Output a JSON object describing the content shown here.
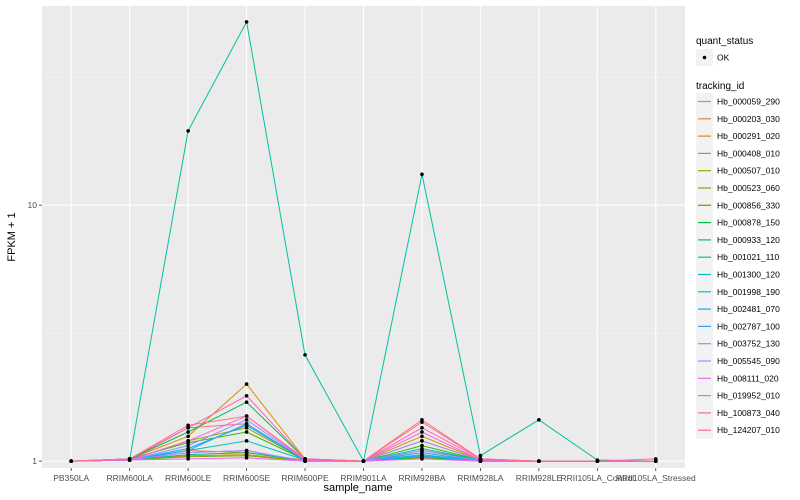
{
  "chart_data": {
    "type": "line",
    "title": "",
    "xlabel": "sample_name",
    "ylabel": "FPKM + 1",
    "y_scale": "log10",
    "ylim": [
      0.94,
      60
    ],
    "y_ticks": [
      {
        "value": 1,
        "label": "1"
      },
      {
        "value": 10,
        "label": "10"
      }
    ],
    "grid": true,
    "categories": [
      "PB350LA",
      "RRIM600LA",
      "RRIM600LE",
      "RRIM600SE",
      "RRIM600PE",
      "RRIM901LA",
      "RRIM928BA",
      "RRIM928LA",
      "RRIM928LE",
      "RRII105LA_Control",
      "RRII105LA_Stressed"
    ],
    "legend_position": "right",
    "point_legend": {
      "title": "quant_status",
      "entries": [
        "OK"
      ]
    },
    "legend_title": "tracking_id",
    "series": [
      {
        "name": "Hb_000059_290",
        "color": "#F8766D",
        "values": [
          1,
          1.01,
          1.35,
          1.4,
          1.01,
          1,
          1.42,
          1.02,
          1,
          1,
          1
        ]
      },
      {
        "name": "Hb_000203_030",
        "color": "#EA8331",
        "values": [
          1,
          1.01,
          1.1,
          1.08,
          1.01,
          1,
          1.2,
          1.01,
          1,
          1,
          1
        ]
      },
      {
        "name": "Hb_000291_020",
        "color": "#D89000",
        "values": [
          1,
          1.02,
          1.25,
          2.0,
          1.02,
          1,
          1.25,
          1.01,
          1,
          1,
          1
        ]
      },
      {
        "name": "Hb_000408_010",
        "color": "#C09B00",
        "values": [
          1,
          1.01,
          1.05,
          1.06,
          1.0,
          1,
          1.05,
          1.0,
          1,
          1,
          1
        ]
      },
      {
        "name": "Hb_000507_010",
        "color": "#A3A500",
        "values": [
          1,
          1.01,
          1.2,
          1.35,
          1.01,
          1,
          1.1,
          1.01,
          1,
          1,
          1
        ]
      },
      {
        "name": "Hb_000523_060",
        "color": "#7CAE00",
        "values": [
          1,
          1.01,
          1.04,
          1.05,
          1.0,
          1,
          1.03,
          1.0,
          1,
          1,
          1
        ]
      },
      {
        "name": "Hb_000856_330",
        "color": "#39B600",
        "values": [
          1,
          1.02,
          1.18,
          1.3,
          1.01,
          1,
          1.15,
          1.01,
          1,
          1,
          1
        ]
      },
      {
        "name": "Hb_000878_150",
        "color": "#00BB4E",
        "values": [
          1,
          1.02,
          1.3,
          1.7,
          1.02,
          1,
          1.1,
          1.01,
          1,
          1,
          1
        ]
      },
      {
        "name": "Hb_000933_120",
        "color": "#00BF7D",
        "values": [
          1,
          1.01,
          1.06,
          1.08,
          1.0,
          1,
          1.04,
          1.0,
          1,
          1,
          1
        ]
      },
      {
        "name": "Hb_001021_110",
        "color": "#00C1A3",
        "values": [
          1,
          1.02,
          19.5,
          52,
          2.6,
          1,
          13.2,
          1.05,
          1.45,
          1.01,
          1
        ]
      },
      {
        "name": "Hb_001300_120",
        "color": "#00BFC4",
        "values": [
          1,
          1.01,
          1.1,
          1.2,
          1.01,
          1,
          1.12,
          1.01,
          1,
          1,
          1
        ]
      },
      {
        "name": "Hb_001998_190",
        "color": "#00BAE0",
        "values": [
          1,
          1.01,
          1.08,
          1.1,
          1.0,
          1,
          1.06,
          1.0,
          1,
          1,
          1
        ]
      },
      {
        "name": "Hb_002481_070",
        "color": "#00B0F6",
        "values": [
          1,
          1.01,
          1.12,
          1.38,
          1.01,
          1,
          1.08,
          1.0,
          1,
          1,
          1
        ]
      },
      {
        "name": "Hb_002787_100",
        "color": "#35A2FF",
        "values": [
          1,
          1.01,
          1.1,
          1.4,
          1.01,
          1,
          1.05,
          1.0,
          1,
          1,
          1
        ]
      },
      {
        "name": "Hb_003752_130",
        "color": "#9590FF",
        "values": [
          1,
          1.01,
          1.15,
          1.45,
          1.01,
          1,
          1.2,
          1.01,
          1,
          1,
          1
        ]
      },
      {
        "name": "Hb_005545_090",
        "color": "#C77CFF",
        "values": [
          1,
          1.01,
          1.08,
          1.1,
          1.0,
          1,
          1.1,
          1.0,
          1,
          1,
          1
        ]
      },
      {
        "name": "Hb_008111_020",
        "color": "#E76BF3",
        "values": [
          1,
          1.01,
          1.02,
          1.03,
          1.0,
          1,
          1.02,
          1.0,
          1,
          1,
          1
        ]
      },
      {
        "name": "Hb_019952_010",
        "color": "#FA62DB",
        "values": [
          1,
          1.01,
          1.2,
          1.5,
          1.01,
          1,
          1.3,
          1.01,
          1,
          1,
          1
        ]
      },
      {
        "name": "Hb_100873_040",
        "color": "#FF62BC",
        "values": [
          1,
          1.02,
          1.35,
          1.8,
          1.02,
          1,
          1.35,
          1.02,
          1,
          1,
          1.02
        ]
      },
      {
        "name": "Hb_124207_010",
        "color": "#FF6C91",
        "values": [
          1,
          1.02,
          1.38,
          1.5,
          1.02,
          1,
          1.45,
          1.02,
          1,
          1,
          1
        ]
      }
    ]
  }
}
